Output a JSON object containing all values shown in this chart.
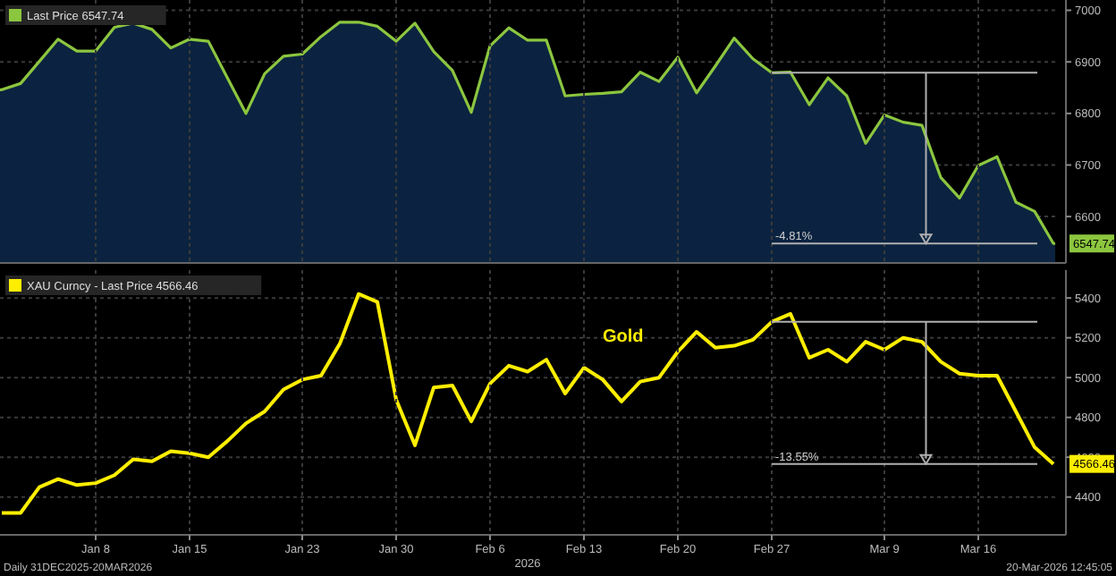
{
  "chart_data": [
    {
      "type": "area",
      "categories": [
        null,
        null,
        null,
        null,
        null,
        "Jan 8",
        null,
        null,
        null,
        null,
        "Jan 15",
        null,
        null,
        null,
        null,
        null,
        "Jan 23",
        null,
        null,
        null,
        null,
        "Jan 30",
        null,
        null,
        null,
        null,
        "Feb 6",
        null,
        null,
        null,
        null,
        "Feb 13",
        null,
        null,
        null,
        null,
        "Feb 20",
        null,
        null,
        null,
        null,
        "Feb 27",
        null,
        null,
        null,
        null,
        null,
        "Mar 9",
        null,
        null,
        null,
        null,
        "Mar 16",
        null,
        null,
        null,
        null
      ],
      "series": [
        {
          "name": "Last Price 6547.74",
          "color": "#8cc63f",
          "values": [
            6846,
            6858,
            6901,
            6944,
            6921,
            6921,
            6967,
            6975,
            6963,
            6927,
            6944,
            6940,
            6870,
            6800,
            6877,
            6911,
            6915,
            6949,
            6977,
            6977,
            6969,
            6940,
            6975,
            6920,
            6883,
            6802,
            6931,
            6966,
            6942,
            6942,
            6834,
            6837,
            6839,
            6842,
            6880,
            6862,
            6909,
            6840,
            6892,
            6946,
            6906,
            6879,
            6880,
            6817,
            6869,
            6834,
            6742,
            6797,
            6783,
            6777,
            6676,
            6636,
            6699,
            6716,
            6628,
            6610,
            6547.74
          ],
          "value_labels": [
            null,
            null,
            null,
            null,
            null,
            null,
            null,
            null,
            null,
            null,
            null,
            null,
            null,
            null,
            null,
            null,
            null,
            null,
            null,
            null,
            null,
            null,
            null,
            null,
            null,
            null,
            null,
            null,
            null,
            null,
            null,
            null,
            null,
            null,
            null,
            null,
            null,
            null,
            null,
            null,
            null,
            null,
            null,
            null,
            null,
            null,
            null,
            null,
            null,
            null,
            null,
            null,
            null,
            null,
            null,
            null,
            "6547.74"
          ]
        }
      ],
      "ylim": [
        6510,
        7020
      ],
      "yticks": [
        6600,
        6700,
        6800,
        6900,
        7000
      ],
      "grid": true,
      "legend": "top left",
      "tick_labels": "y",
      "ref_lines": [
        {
          "axis": "y",
          "value": 6879
        },
        {
          "axis": "y",
          "value": 6547.74
        }
      ],
      "annotations": [
        {
          "text": "-4.81%",
          "x": "Feb 27",
          "y": 6547.74
        }
      ]
    },
    {
      "type": "line",
      "xlabel": "2026",
      "categories": [
        null,
        null,
        null,
        null,
        null,
        "Jan 8",
        null,
        null,
        null,
        null,
        "Jan 15",
        null,
        null,
        null,
        null,
        null,
        "Jan 23",
        null,
        null,
        null,
        null,
        "Jan 30",
        null,
        null,
        null,
        null,
        "Feb 6",
        null,
        null,
        null,
        null,
        "Feb 13",
        null,
        null,
        null,
        null,
        "Feb 20",
        null,
        null,
        null,
        null,
        "Feb 27",
        null,
        null,
        null,
        null,
        null,
        "Mar 9",
        null,
        null,
        null,
        null,
        "Mar 16",
        null,
        null,
        null,
        null
      ],
      "series": [
        {
          "name": "XAU Curncy - Last Price 4566.46",
          "color": "#ffee00",
          "values": [
            4320,
            4320,
            4450,
            4490,
            4460,
            4470,
            4510,
            4590,
            4580,
            4630,
            4620,
            4600,
            4680,
            4770,
            4830,
            4940,
            4990,
            5010,
            5170,
            5420,
            5380,
            4890,
            4660,
            4950,
            4960,
            4780,
            4970,
            5060,
            5030,
            5090,
            4920,
            5050,
            4990,
            4880,
            4980,
            5000,
            5130,
            5230,
            5150,
            5160,
            5190,
            5280,
            5320,
            5100,
            5140,
            5080,
            5180,
            5140,
            5200,
            5180,
            5080,
            5020,
            5010,
            5010,
            4830,
            4650,
            4566.46
          ],
          "value_labels": [
            null,
            null,
            null,
            null,
            null,
            null,
            null,
            null,
            null,
            null,
            null,
            null,
            null,
            null,
            null,
            null,
            null,
            null,
            null,
            null,
            null,
            null,
            null,
            null,
            null,
            null,
            null,
            null,
            null,
            null,
            null,
            null,
            null,
            null,
            null,
            null,
            null,
            null,
            null,
            null,
            null,
            null,
            null,
            null,
            null,
            null,
            null,
            null,
            null,
            null,
            null,
            null,
            null,
            null,
            null,
            null,
            "4566.46"
          ]
        }
      ],
      "ylim": [
        4210,
        5540
      ],
      "yticks": [
        4400,
        4600,
        4800,
        5000,
        5200,
        5400
      ],
      "grid": true,
      "legend": "top left",
      "ref_lines": [
        {
          "axis": "y",
          "value": 5280
        },
        {
          "axis": "y",
          "value": 4566.46
        }
      ],
      "annotations": [
        {
          "text": "-13.55%",
          "x": "Feb 27",
          "y": 4566.46
        },
        "Gold",
        "Daily 31DEC2025-20MAR2026",
        "20-Mar-2026 12:45:05"
      ]
    }
  ]
}
